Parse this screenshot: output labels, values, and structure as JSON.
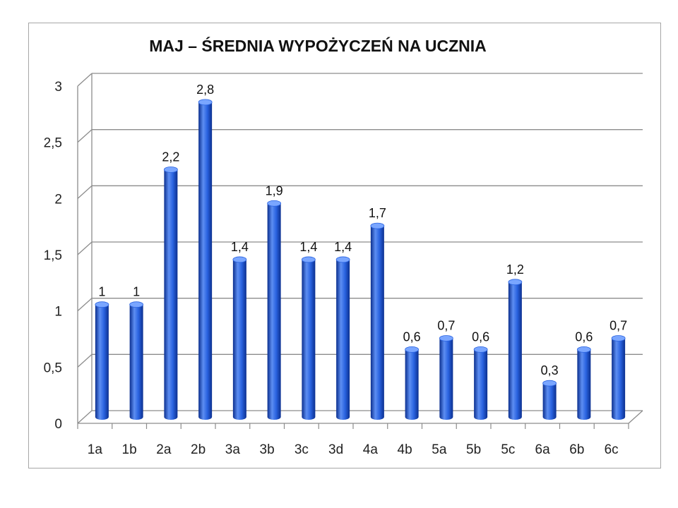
{
  "chart_data": {
    "type": "bar",
    "title": "MAJ – ŚREDNIA WYPOŻYCZEŃ NA UCZNIA",
    "xlabel": "",
    "ylabel": "",
    "categories": [
      "1a",
      "1b",
      "2a",
      "2b",
      "3a",
      "3b",
      "3c",
      "3d",
      "4a",
      "4b",
      "5a",
      "5b",
      "5c",
      "6a",
      "6b",
      "6c"
    ],
    "values": [
      1,
      1,
      2.2,
      2.8,
      1.4,
      1.9,
      1.4,
      1.4,
      1.7,
      0.6,
      0.7,
      0.6,
      1.2,
      0.3,
      0.6,
      0.7
    ],
    "value_labels": [
      "1",
      "1",
      "2,2",
      "2,8",
      "1,4",
      "1,9",
      "1,4",
      "1,4",
      "1,7",
      "0,6",
      "0,7",
      "0,6",
      "1,2",
      "0,3",
      "0,6",
      "0,7"
    ],
    "yticks": [
      0,
      0.5,
      1,
      1.5,
      2,
      2.5,
      3
    ],
    "ytick_labels": [
      "0",
      "0,5",
      "1",
      "1,5",
      "2",
      "2,5",
      "3"
    ],
    "ylim": [
      0,
      3
    ],
    "grid": true,
    "legend": "none",
    "colors": {
      "bar_dark": "#0b2f8f",
      "bar_mid": "#2a63e0",
      "bar_light": "#5d8ef2",
      "bar_top": "#7aa6ff",
      "gridline": "#8c8c8c",
      "wall": "#ffffff"
    }
  }
}
